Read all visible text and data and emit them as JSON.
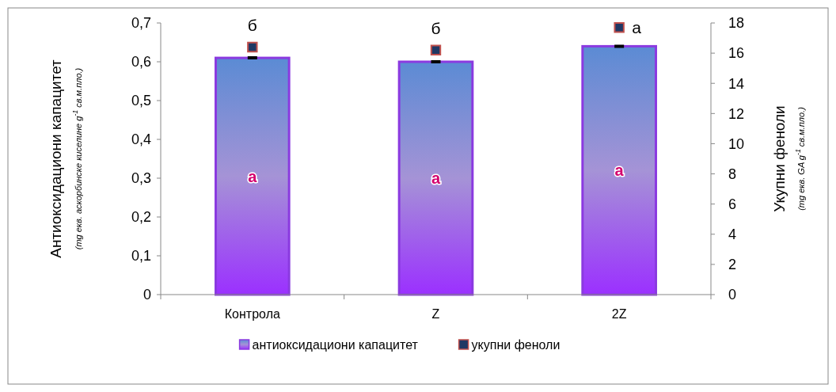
{
  "chart_data": {
    "type": "bar",
    "categories": [
      "Контрола",
      "Z",
      "2Z"
    ],
    "ylabel": "Антиоксидациони капацитет\n(mg екв. аскорбинске киселине g$^{-1}$ св.м.пло.)",
    "y2label": "Укупни феноли\n(mg екв. GA g$^{-1}$ св.м.пло.)",
    "series": [
      {
        "name": "антиоксидациони капацитет",
        "color": "#8b3ae0",
        "values": [
          0.61,
          0.6,
          0.64
        ],
        "errors": [
          0.002,
          0.002,
          0.002
        ]
      },
      {
        "name": "укупни феноли",
        "type": "scatter",
        "axis": "y2",
        "color": "#1f3864",
        "values": [
          16.4,
          16.2,
          17.7
        ]
      }
    ],
    "ylim": [
      0,
      0.7
    ],
    "yticks": [
      0,
      {
        "value": 0.1,
        "label": "0,1"
      },
      {
        "value": 0.2,
        "label": "0,2"
      },
      {
        "value": 0.3,
        "label": "0,3"
      },
      {
        "value": 0.4,
        "label": "0,4"
      },
      {
        "value": 0.5,
        "label": "0,5"
      },
      {
        "value": 0.6,
        "label": "0,6"
      },
      {
        "value": 0.7,
        "label": "0,7"
      }
    ],
    "y2lim": [
      0,
      18
    ],
    "y2ticks": [
      0,
      2,
      4,
      6,
      8,
      10,
      12,
      14,
      16,
      18
    ],
    "marker": "square",
    "legend": "bottom",
    "grid": false,
    "annotations": [
      "б",
      "б",
      "а",
      "а",
      "а",
      "а"
    ]
  }
}
